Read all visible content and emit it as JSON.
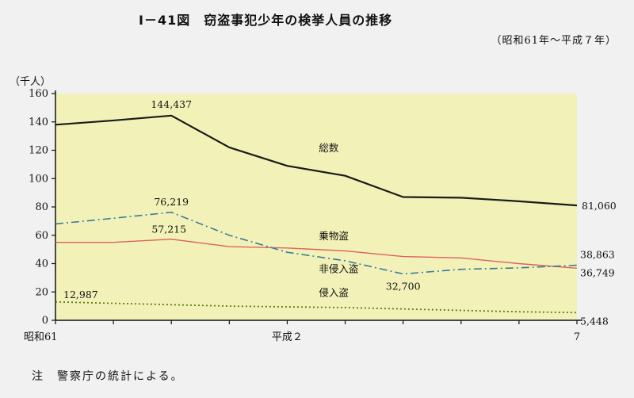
{
  "title": "Ⅰ－41図　窃盗事犯少年の検挙人員の推移",
  "subtitle": "（昭和61年～平成７年）",
  "unit_label": "（千人）",
  "note": "注　警察庁の統計による。",
  "colors": {
    "background": "#f2f1f2",
    "plot_bg": "#f2f2b8",
    "total": "#1a1a1a",
    "vehicle": "#dd6060",
    "non_burglary": "#3a7a9a",
    "burglary": "#5a7a10"
  },
  "chart_data": {
    "type": "line",
    "title": "窃盗事犯少年の検挙人員の推移",
    "ylabel": "（千人）",
    "ylim": [
      0,
      160
    ],
    "yticks": [
      "0",
      "20",
      "40",
      "60",
      "80",
      "100",
      "120",
      "140",
      "160"
    ],
    "x": [
      61,
      62,
      63,
      1,
      2,
      3,
      4,
      5,
      6,
      7
    ],
    "xtick_labels": [
      {
        "index": 0,
        "label": "昭和61"
      },
      {
        "index": 4,
        "label": "平成２"
      },
      {
        "index": 9,
        "label": "7"
      }
    ],
    "series": [
      {
        "name": "総数",
        "style": "solid",
        "color": "#1a1a1a",
        "values": [
          138,
          141,
          144.437,
          122,
          109,
          102,
          87,
          86.5,
          84,
          81.06
        ]
      },
      {
        "name": "乗物盗",
        "style": "solid",
        "color": "#dd6060",
        "values": [
          55,
          55,
          57.215,
          52,
          51,
          49,
          45,
          44,
          40,
          36.749
        ]
      },
      {
        "name": "非侵入盗",
        "style": "dashdot",
        "color": "#3a7a9a",
        "values": [
          68,
          72,
          76.219,
          60,
          48,
          42,
          32.7,
          36,
          37,
          38.863
        ]
      },
      {
        "name": "侵入盗",
        "style": "dotted",
        "color": "#5a7a10",
        "values": [
          12.987,
          12,
          11,
          10,
          9.5,
          9,
          8,
          7,
          6,
          5.448
        ]
      }
    ],
    "annotations": [
      {
        "text": "144,437",
        "series": 0,
        "index": 2
      },
      {
        "text": "81,060",
        "series": 0,
        "index": 9
      },
      {
        "text": "76,219",
        "series": 2,
        "index": 2
      },
      {
        "text": "57,215",
        "series": 1,
        "index": 2
      },
      {
        "text": "32,700",
        "series": 2,
        "index": 6
      },
      {
        "text": "38,863",
        "series": 2,
        "index": 9
      },
      {
        "text": "36,749",
        "series": 1,
        "index": 9
      },
      {
        "text": "12,987",
        "series": 3,
        "index": 0
      },
      {
        "text": "5,448",
        "series": 3,
        "index": 9
      }
    ]
  }
}
